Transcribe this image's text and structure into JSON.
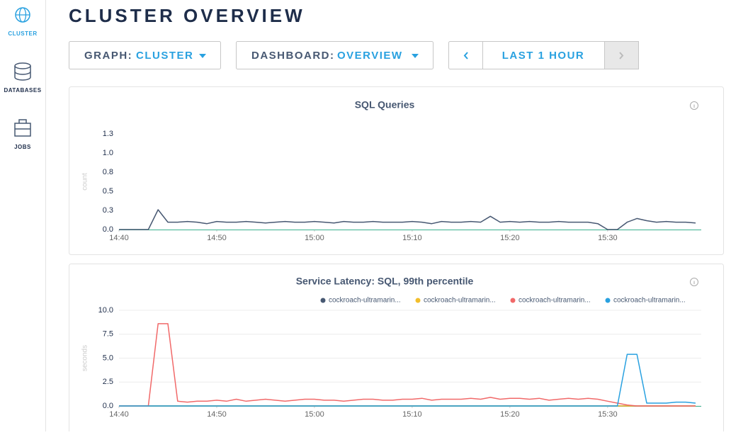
{
  "sidebar": {
    "items": [
      "CLUSTER",
      "DATABASES",
      "JOBS"
    ]
  },
  "header": {
    "title": "CLUSTER OVERVIEW"
  },
  "controls": {
    "graph_label": "GRAPH:",
    "graph_value": "CLUSTER",
    "dashboard_label": "DASHBOARD:",
    "dashboard_value": "OVERVIEW",
    "time_range": "LAST 1 HOUR"
  },
  "chart_data": [
    {
      "type": "line",
      "title": "SQL Queries",
      "ylabel": "count",
      "color": "#475872",
      "grid": false,
      "x": [
        "14:40",
        "14:41",
        "14:42",
        "14:43",
        "14:44",
        "14:45",
        "14:46",
        "14:47",
        "14:48",
        "14:49",
        "14:50",
        "14:51",
        "14:52",
        "14:53",
        "14:54",
        "14:55",
        "14:56",
        "14:57",
        "14:58",
        "14:59",
        "15:00",
        "15:01",
        "15:02",
        "15:03",
        "15:04",
        "15:05",
        "15:06",
        "15:07",
        "15:08",
        "15:09",
        "15:10",
        "15:11",
        "15:12",
        "15:13",
        "15:14",
        "15:15",
        "15:16",
        "15:17",
        "15:18",
        "15:19",
        "15:20",
        "15:21",
        "15:22",
        "15:23",
        "15:24",
        "15:25",
        "15:26",
        "15:27",
        "15:28",
        "15:29",
        "15:30",
        "15:31",
        "15:32",
        "15:33",
        "15:34",
        "15:35",
        "15:36",
        "15:37",
        "15:38",
        "15:39"
      ],
      "values": [
        0,
        0,
        0,
        0,
        0.27,
        0.1,
        0.1,
        0.11,
        0.1,
        0.08,
        0.11,
        0.1,
        0.1,
        0.11,
        0.1,
        0.09,
        0.1,
        0.11,
        0.1,
        0.1,
        0.11,
        0.1,
        0.09,
        0.11,
        0.1,
        0.1,
        0.11,
        0.1,
        0.1,
        0.1,
        0.11,
        0.1,
        0.08,
        0.11,
        0.1,
        0.1,
        0.11,
        0.1,
        0.18,
        0.1,
        0.11,
        0.1,
        0.11,
        0.1,
        0.1,
        0.11,
        0.1,
        0.1,
        0.1,
        0.08,
        0,
        0,
        0.1,
        0.15,
        0.12,
        0.1,
        0.11,
        0.1,
        0.1,
        0.09
      ],
      "xlim": [
        "14:40",
        "15:39"
      ],
      "xticks": [
        "14:40",
        "14:50",
        "15:00",
        "15:10",
        "15:20",
        "15:30"
      ],
      "ylim": [
        0,
        1.3
      ],
      "yticks": [
        {
          "value": 0,
          "label": "0.0"
        },
        {
          "value": 0.26,
          "label": "0.3"
        },
        {
          "value": 0.52,
          "label": "0.5"
        },
        {
          "value": 0.78,
          "label": "0.8"
        },
        {
          "value": 1.04,
          "label": "1.0"
        },
        1.3
      ]
    },
    {
      "type": "line",
      "title": "Service Latency: SQL, 99th percentile",
      "ylabel": "seconds",
      "grid": true,
      "x": [
        "14:40",
        "14:41",
        "14:42",
        "14:43",
        "14:44",
        "14:45",
        "14:46",
        "14:47",
        "14:48",
        "14:49",
        "14:50",
        "14:51",
        "14:52",
        "14:53",
        "14:54",
        "14:55",
        "14:56",
        "14:57",
        "14:58",
        "14:59",
        "15:00",
        "15:01",
        "15:02",
        "15:03",
        "15:04",
        "15:05",
        "15:06",
        "15:07",
        "15:08",
        "15:09",
        "15:10",
        "15:11",
        "15:12",
        "15:13",
        "15:14",
        "15:15",
        "15:16",
        "15:17",
        "15:18",
        "15:19",
        "15:20",
        "15:21",
        "15:22",
        "15:23",
        "15:24",
        "15:25",
        "15:26",
        "15:27",
        "15:28",
        "15:29",
        "15:30",
        "15:31",
        "15:32",
        "15:33",
        "15:34",
        "15:35",
        "15:36",
        "15:37",
        "15:38",
        "15:39"
      ],
      "series": [
        {
          "name": "cockroach-ultramarin...",
          "color": "#475872",
          "values": [
            0,
            0,
            0,
            0,
            0,
            0,
            0,
            0,
            0,
            0,
            0,
            0,
            0,
            0,
            0,
            0,
            0,
            0,
            0,
            0,
            0,
            0,
            0,
            0,
            0,
            0,
            0,
            0,
            0,
            0,
            0,
            0,
            0,
            0,
            0,
            0,
            0,
            0,
            0,
            0,
            0,
            0,
            0,
            0,
            0,
            0,
            0,
            0,
            0,
            0,
            0,
            0,
            0,
            0,
            0,
            0,
            0,
            0,
            0,
            0
          ]
        },
        {
          "name": "cockroach-ultramarin...",
          "color": "#f2be2c",
          "values": [
            0,
            0,
            0,
            0,
            0,
            0,
            0,
            0,
            0,
            0,
            0,
            0,
            0,
            0,
            0,
            0,
            0,
            0,
            0,
            0,
            0,
            0,
            0,
            0,
            0,
            0,
            0,
            0,
            0,
            0,
            0,
            0,
            0,
            0,
            0,
            0,
            0,
            0,
            0,
            0,
            0,
            0,
            0,
            0,
            0,
            0,
            0,
            0,
            0,
            0,
            0,
            0,
            0,
            0,
            0,
            0,
            0,
            0,
            0,
            0
          ]
        },
        {
          "name": "cockroach-ultramarin...",
          "color": "#f16969",
          "values": [
            0,
            0,
            0,
            0,
            8.6,
            8.6,
            0.5,
            0.4,
            0.5,
            0.5,
            0.6,
            0.5,
            0.7,
            0.5,
            0.6,
            0.7,
            0.6,
            0.5,
            0.6,
            0.7,
            0.7,
            0.6,
            0.6,
            0.5,
            0.6,
            0.7,
            0.7,
            0.6,
            0.6,
            0.7,
            0.7,
            0.8,
            0.6,
            0.7,
            0.7,
            0.7,
            0.8,
            0.7,
            0.9,
            0.7,
            0.8,
            0.8,
            0.7,
            0.8,
            0.6,
            0.7,
            0.8,
            0.7,
            0.8,
            0.7,
            0.5,
            0.3,
            0.1,
            0,
            0,
            0,
            0,
            0,
            0,
            0
          ]
        },
        {
          "name": "cockroach-ultramarin...",
          "color": "#29a1e0",
          "values": [
            0,
            0,
            0,
            0,
            0,
            0,
            0,
            0,
            0,
            0,
            0,
            0,
            0,
            0,
            0,
            0,
            0,
            0,
            0,
            0,
            0,
            0,
            0,
            0,
            0,
            0,
            0,
            0,
            0,
            0,
            0,
            0,
            0,
            0,
            0,
            0,
            0,
            0,
            0,
            0,
            0,
            0,
            0,
            0,
            0,
            0,
            0,
            0,
            0,
            0,
            0,
            0,
            5.4,
            5.4,
            0.3,
            0.3,
            0.3,
            0.4,
            0.4,
            0.3
          ]
        }
      ],
      "xlim": [
        "14:40",
        "15:39"
      ],
      "xticks": [
        "14:40",
        "14:50",
        "15:00",
        "15:10",
        "15:20",
        "15:30"
      ],
      "ylim": [
        0,
        10
      ],
      "yticks": [
        {
          "value": 0,
          "label": "0.0"
        },
        2.5,
        {
          "value": 5,
          "label": "5.0"
        },
        7.5,
        {
          "value": 10,
          "label": "10.0"
        }
      ]
    }
  ]
}
